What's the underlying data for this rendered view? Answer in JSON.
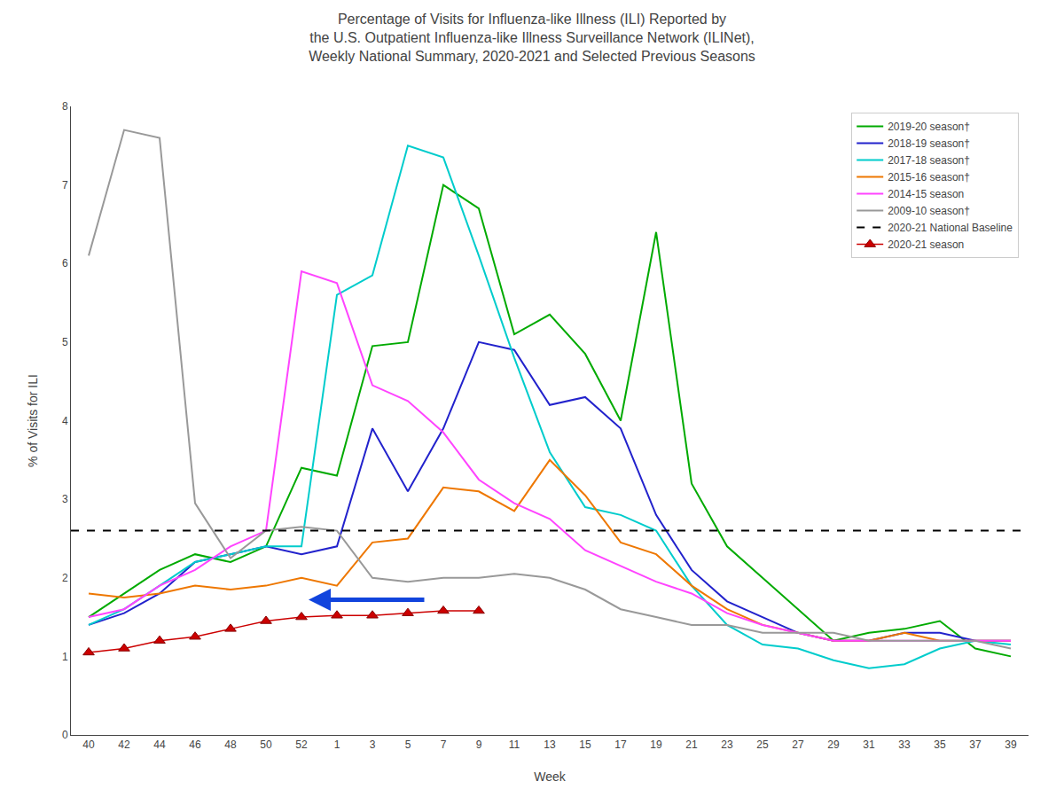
{
  "chart_data": {
    "type": "line",
    "title": "Percentage of Visits for Influenza-like Illness (ILI) Reported by\nthe U.S. Outpatient Influenza-like Illness Surveillance Network (ILINet),\nWeekly National Summary, 2020-2021 and Selected Previous Seasons",
    "xlabel": "Week",
    "ylabel": "% of Visits for ILI",
    "categories": [
      "40",
      "42",
      "44",
      "46",
      "48",
      "50",
      "52",
      "1",
      "3",
      "5",
      "7",
      "9",
      "11",
      "13",
      "15",
      "17",
      "19",
      "21",
      "23",
      "25",
      "27",
      "29",
      "31",
      "33",
      "35",
      "37",
      "39"
    ],
    "ylim": [
      0,
      8
    ],
    "yticks": [
      0,
      1,
      2,
      3,
      4,
      5,
      6,
      7,
      8
    ],
    "grid": false,
    "legend": "upper right",
    "series": [
      {
        "name": "2019-20 season†",
        "color": "#00aa00",
        "line_style": "solid",
        "values": [
          1.5,
          1.8,
          2.1,
          2.3,
          2.2,
          2.4,
          3.4,
          3.3,
          4.95,
          5.0,
          7.0,
          6.7,
          5.1,
          5.35,
          4.85,
          4.0,
          6.4,
          3.2,
          2.4,
          2.0,
          1.6,
          1.2,
          1.3,
          1.35,
          1.45,
          1.1,
          1.0
        ]
      },
      {
        "name": "2018-19 season†",
        "color": "#2222cc",
        "line_style": "solid",
        "values": [
          1.4,
          1.55,
          1.8,
          2.2,
          2.3,
          2.4,
          2.3,
          2.4,
          3.9,
          3.1,
          3.9,
          5.0,
          4.9,
          4.2,
          4.3,
          3.9,
          2.8,
          2.1,
          1.7,
          1.5,
          1.3,
          1.2,
          1.2,
          1.3,
          1.3,
          1.2,
          1.2
        ]
      },
      {
        "name": "2017-18 season†",
        "color": "#00cccc",
        "line_style": "solid",
        "values": [
          1.4,
          1.6,
          1.9,
          2.2,
          2.3,
          2.4,
          2.4,
          5.6,
          5.85,
          7.5,
          7.35,
          6.1,
          4.8,
          3.6,
          2.9,
          2.8,
          2.6,
          1.9,
          1.4,
          1.15,
          1.1,
          0.95,
          0.85,
          0.9,
          1.1,
          1.2,
          1.15
        ]
      },
      {
        "name": "2015-16 season†",
        "color": "#ee7700",
        "line_style": "solid",
        "values": [
          1.8,
          1.75,
          1.8,
          1.9,
          1.85,
          1.9,
          2.0,
          1.9,
          2.45,
          2.5,
          3.15,
          3.1,
          2.85,
          3.5,
          3.05,
          2.45,
          2.3,
          1.9,
          1.6,
          1.4,
          1.3,
          1.2,
          1.2,
          1.3,
          1.2,
          1.2,
          1.2
        ]
      },
      {
        "name": "2014-15 season",
        "color": "#ff44ff",
        "line_style": "solid",
        "values": [
          1.5,
          1.6,
          1.9,
          2.1,
          2.4,
          2.6,
          5.9,
          5.75,
          4.45,
          4.25,
          3.85,
          3.25,
          2.95,
          2.75,
          2.35,
          2.15,
          1.95,
          1.8,
          1.55,
          1.4,
          1.3,
          1.2,
          1.2,
          1.2,
          1.2,
          1.2,
          1.2
        ]
      },
      {
        "name": "2009-10 season†",
        "color": "#999999",
        "line_style": "solid",
        "values": [
          6.1,
          7.7,
          7.6,
          2.95,
          2.25,
          2.6,
          2.65,
          2.6,
          2.0,
          1.95,
          2.0,
          2.0,
          2.05,
          2.0,
          1.85,
          1.6,
          1.5,
          1.4,
          1.4,
          1.3,
          1.3,
          1.3,
          1.2,
          1.2,
          1.2,
          1.2,
          1.1
        ]
      },
      {
        "name": "2020-21 National Baseline",
        "color": "#000000",
        "line_style": "dashed",
        "type": "hline",
        "y": 2.6
      },
      {
        "name": "2020-21 season",
        "color": "#cc0000",
        "line_style": "solid",
        "marker": "triangle",
        "values": [
          1.05,
          1.1,
          1.2,
          1.25,
          1.35,
          1.45,
          1.5,
          1.52,
          1.52,
          1.55,
          1.58,
          1.58,
          null,
          null,
          null,
          null,
          null,
          null,
          null,
          null,
          null,
          null,
          null,
          null,
          null,
          null,
          null
        ]
      }
    ],
    "arrows": [
      {
        "x_start": 9.5,
        "x_end": 6.2,
        "y": 1.72,
        "color": "#1144dd"
      }
    ]
  }
}
